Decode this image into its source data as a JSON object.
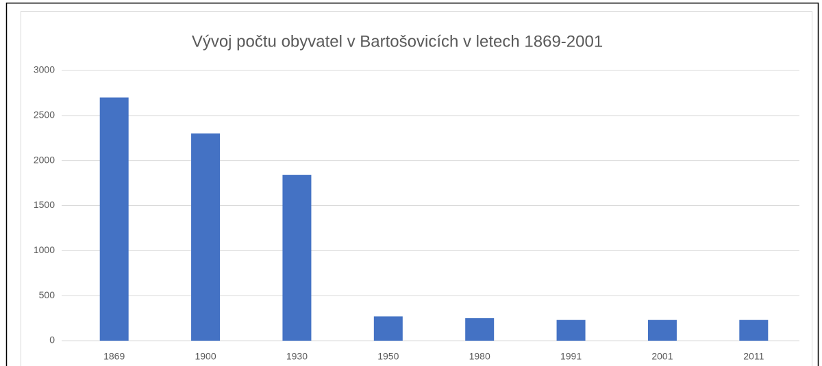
{
  "chart_data": {
    "type": "bar",
    "title": "Vývoj počtu obyvatel v Bartošovicích v letech 1869-2001",
    "categories": [
      "1869",
      "1900",
      "1930",
      "1950",
      "1980",
      "1991",
      "2001",
      "2011"
    ],
    "values": [
      2700,
      2300,
      1840,
      270,
      250,
      230,
      230,
      230
    ],
    "color": "#4472c4",
    "ylim": [
      0,
      3000
    ],
    "yticks": [
      0,
      500,
      1000,
      1500,
      2000,
      2500,
      3000
    ],
    "grid": true
  }
}
